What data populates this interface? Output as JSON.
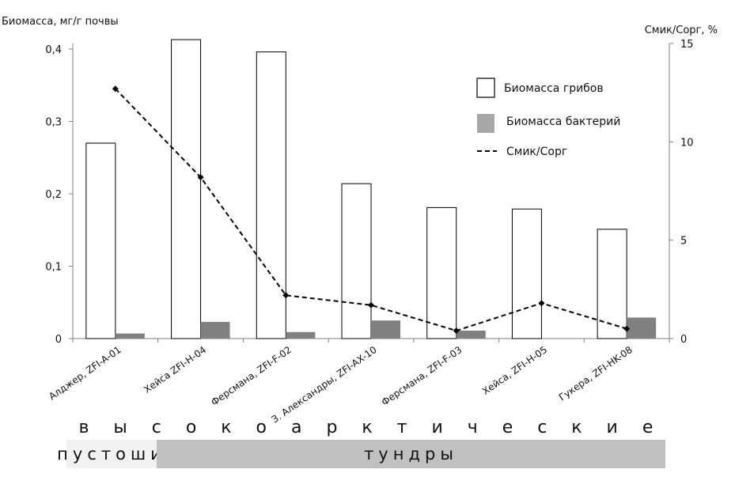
{
  "chart_data": {
    "type": "bar",
    "y_axis_left_label": "Биомасса, мг/г почвы",
    "y_axis_right_label": "Смик/Сорг, %",
    "categories": [
      "Алджер, ZFI-A-01",
      "Хейса ZFI-H-04",
      "Ферсмана, ZFI-F-02",
      "З. Александры, ZFI-AX-10",
      "Ферсмана, ZFI-F-03",
      "Хейса, ZFI-H-05",
      "Гукера, ZFI-HK-08"
    ],
    "left_ylim": [
      0,
      0.4
    ],
    "left_ticks": [
      "0",
      "0,1",
      "0,2",
      "0,3",
      "0,4"
    ],
    "right_ylim": [
      0,
      15
    ],
    "right_ticks": [
      "0",
      "5",
      "10",
      "15"
    ],
    "series": [
      {
        "name": "Биомасса грибов",
        "type": "bar",
        "axis": "left",
        "color": "#ffffff",
        "values": [
          0.27,
          0.413,
          0.396,
          0.214,
          0.181,
          0.179,
          0.151
        ]
      },
      {
        "name": "Биомасса бактерий",
        "type": "bar",
        "axis": "left",
        "color": "#808080",
        "values": [
          0.007,
          0.023,
          0.009,
          0.025,
          0.011,
          0,
          0.029
        ]
      },
      {
        "name": "Смик/Сорг",
        "type": "line",
        "axis": "right",
        "color": "#000000",
        "values": [
          12.7,
          8.2,
          2.2,
          1.7,
          0.4,
          1.8,
          0.5
        ]
      }
    ],
    "legend_position": "top-right",
    "grid": false
  },
  "band": {
    "letters": [
      "в",
      "ы",
      "с",
      "о",
      "к",
      "о",
      "а",
      "р",
      "к",
      "т",
      "и",
      "ч",
      "е",
      "с",
      "к",
      "и",
      "е"
    ]
  },
  "habitat": {
    "barrens": "пустоши",
    "tundra": "тундры"
  }
}
